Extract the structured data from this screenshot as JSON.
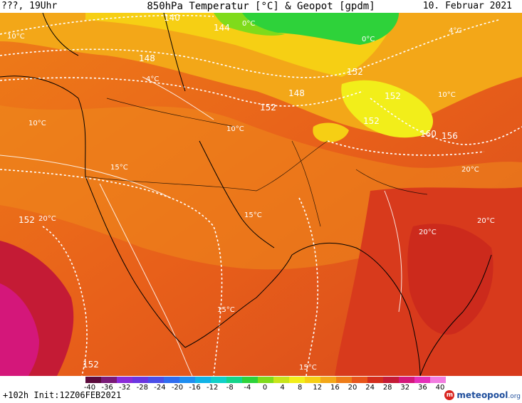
{
  "header": {
    "left": "???, 19Uhr",
    "title": "850hPa Temperatur [°C] & Geopot [gpdm]",
    "date": "10. Februar 2021"
  },
  "geopotential_labels": [
    "140",
    "144",
    "148",
    "148",
    "152",
    "152",
    "152",
    "152",
    "152",
    "156",
    "160",
    "152"
  ],
  "temperature_labels": [
    "0°C",
    "0°C",
    "4°C",
    "4°C",
    "10°C",
    "10°C",
    "10°C",
    "10°C",
    "15°C",
    "15°C",
    "15°C",
    "15°C",
    "20°C",
    "20°C",
    "20°C",
    "20°C"
  ],
  "colorbar": {
    "ticks": [
      "-40",
      "-36",
      "-32",
      "-28",
      "-24",
      "-20",
      "-16",
      "-12",
      "-8",
      "-4",
      "0",
      "4",
      "8",
      "12",
      "16",
      "20",
      "24",
      "28",
      "32",
      "36",
      "40"
    ],
    "colors": [
      "#5c0b3c",
      "#7a1a77",
      "#8a2bd9",
      "#6a35e0",
      "#4b4ee8",
      "#2f6cf0",
      "#1e8ef0",
      "#10b3e6",
      "#10d0c8",
      "#14d48a",
      "#2ed23a",
      "#7fdb1b",
      "#c8e41a",
      "#f2ee1a",
      "#f6cf14",
      "#f3a718",
      "#ee7c18",
      "#e8541a",
      "#d42d1c",
      "#c41b35",
      "#d4177a",
      "#e52fb9",
      "#f27ce0"
    ]
  },
  "footer": {
    "forecast": "+102h Init:12Z06FEB2021"
  },
  "logo": {
    "icon": "meteopool-logo-icon",
    "name": "meteopool",
    "tld": ".org"
  }
}
